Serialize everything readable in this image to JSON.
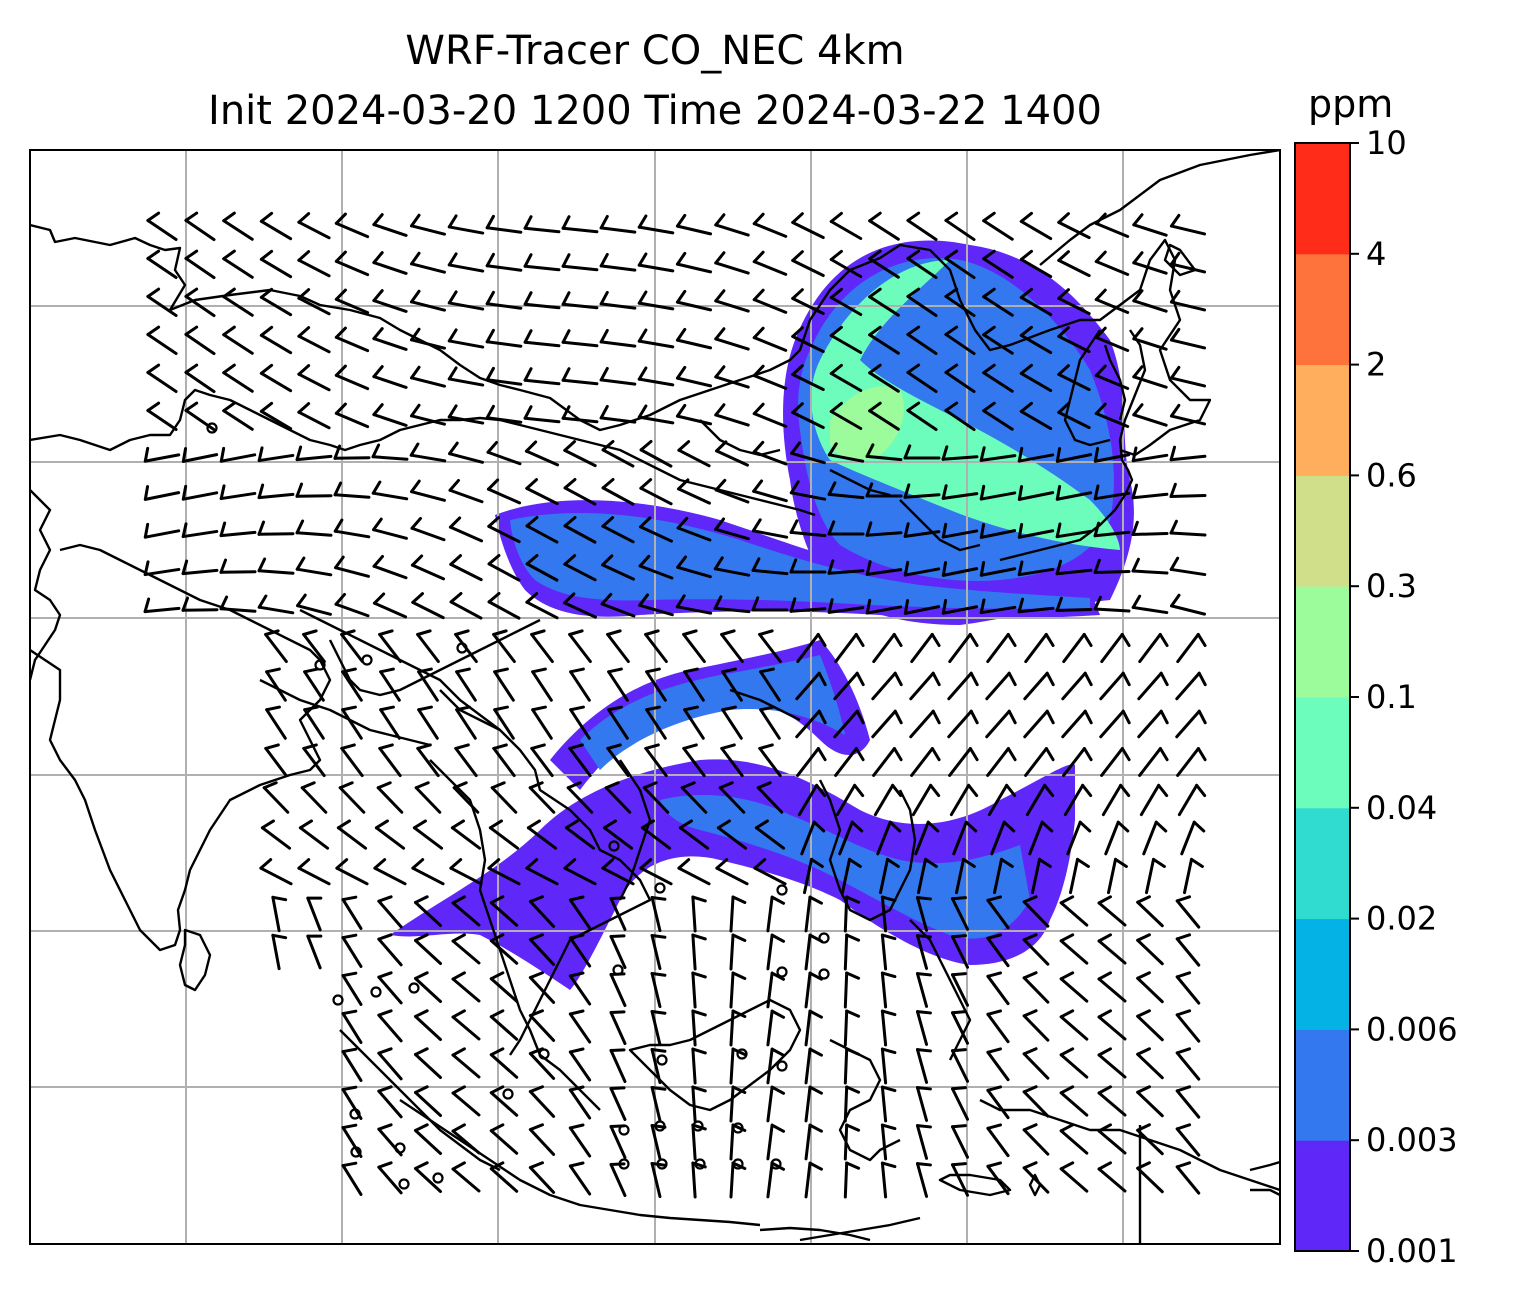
{
  "title": {
    "line1": "WRF-Tracer CO_NEC 4km",
    "line2": "Init 2024-03-20 1200 Time 2024-03-22 1400"
  },
  "colorbar": {
    "unit": "ppm",
    "levels": [
      "0.001",
      "0.003",
      "0.006",
      "0.02",
      "0.04",
      "0.1",
      "0.3",
      "0.6",
      "2",
      "4",
      "10"
    ],
    "colors": [
      "#6028f8",
      "#3478f0",
      "#04b2e6",
      "#30dcd0",
      "#6cfcbc",
      "#9cfc9c",
      "#d0e08a",
      "#feae5c",
      "#fe723c",
      "#fe2c18"
    ]
  },
  "map": {
    "gridlines": true,
    "wind_barbs": true,
    "calm_marker": "circle",
    "plume_colors": {
      "low": "#6028f8",
      "mid": "#3478f0",
      "high": "#6cfcbc",
      "highest": "#9cfc9c"
    }
  }
}
